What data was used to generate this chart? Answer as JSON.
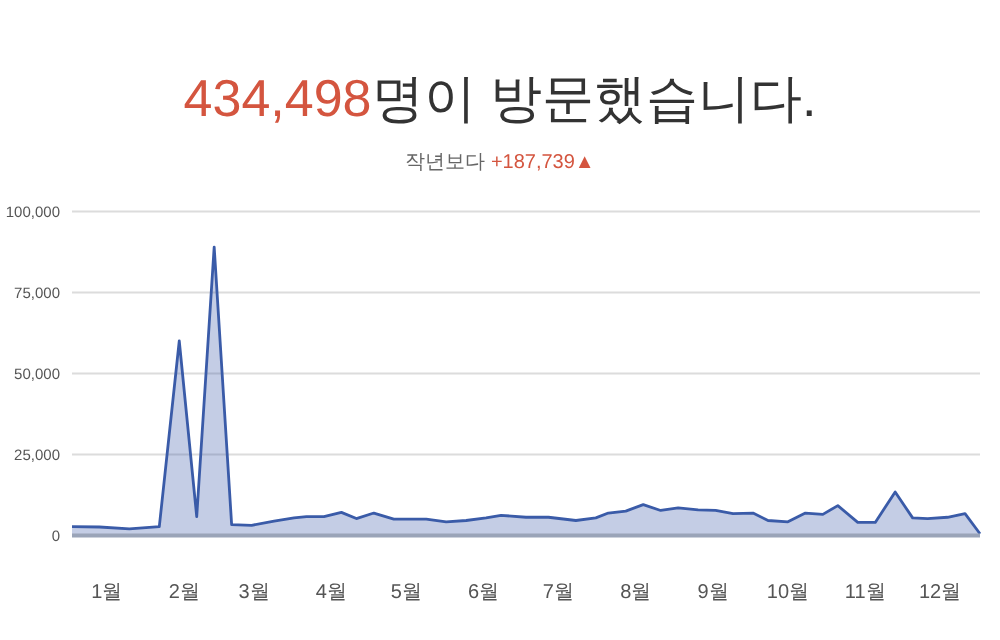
{
  "chart_data": {
    "type": "area",
    "title": "434,498명이 방문했습니다.",
    "subtitle": "작년보다 +187,739▲",
    "x": [
      "--01-01",
      "--01-12",
      "--01-24",
      "--02-05",
      "--02-13",
      "--02-20",
      "--02-27",
      "--03-06",
      "--03-14",
      "--03-23",
      "--03-31",
      "--04-05",
      "--04-12",
      "--04-19",
      "--04-25",
      "--05-02",
      "--05-10",
      "--05-23",
      "--05-31",
      "--06-08",
      "--06-16",
      "--06-22",
      "--07-02",
      "--07-11",
      "--07-22",
      "--07-30",
      "--08-04",
      "--08-11",
      "--08-18",
      "--08-25",
      "--09-01",
      "--09-09",
      "--09-16",
      "--09-23",
      "--10-01",
      "--10-07",
      "--10-15",
      "--10-22",
      "--10-29",
      "--11-04",
      "--11-12",
      "--11-19",
      "--11-27",
      "--12-04",
      "--12-10",
      "--12-18",
      "--12-25",
      "--12-31"
    ],
    "series": [
      {
        "color": "#3a5ba8",
        "values": [
          2700,
          2600,
          2000,
          2700,
          60000,
          5800,
          89000,
          3300,
          3100,
          4400,
          5400,
          5800,
          5800,
          7100,
          5200,
          6900,
          5000,
          5000,
          4200,
          4600,
          5400,
          6200,
          5600,
          5600,
          4600,
          5400,
          6900,
          7500,
          9500,
          7700,
          8500,
          7900,
          7700,
          6700,
          6900,
          4600,
          4200,
          6900,
          6500,
          9200,
          4000,
          4000,
          13400,
          5400,
          5200,
          5600,
          6700,
          500
        ]
      }
    ],
    "xlim": [
      "--01-01",
      "--12-31"
    ],
    "xticks": [
      {
        "value": "--01-15",
        "label": "1월"
      },
      {
        "value": "--02-15",
        "label": "2월"
      },
      {
        "value": "--03-15",
        "label": "3월"
      },
      {
        "value": "--04-15",
        "label": "4월"
      },
      {
        "value": "--05-15",
        "label": "5월"
      },
      {
        "value": "--06-15",
        "label": "6월"
      },
      {
        "value": "--07-15",
        "label": "7월"
      },
      {
        "value": "--08-15",
        "label": "8월"
      },
      {
        "value": "--09-15",
        "label": "9월"
      },
      {
        "value": "--10-15",
        "label": "10월"
      },
      {
        "value": "--11-15",
        "label": "11월"
      },
      {
        "value": "--12-15",
        "label": "12월"
      }
    ],
    "ylim": [
      0,
      100000
    ],
    "yticks": [
      {
        "value": 0,
        "label": "0"
      },
      {
        "value": 25000,
        "label": "25,000"
      },
      {
        "value": 50000,
        "label": "50,000"
      },
      {
        "value": 75000,
        "label": "75,000"
      },
      {
        "value": 100000,
        "label": "100,000"
      }
    ],
    "grid": "y"
  }
}
